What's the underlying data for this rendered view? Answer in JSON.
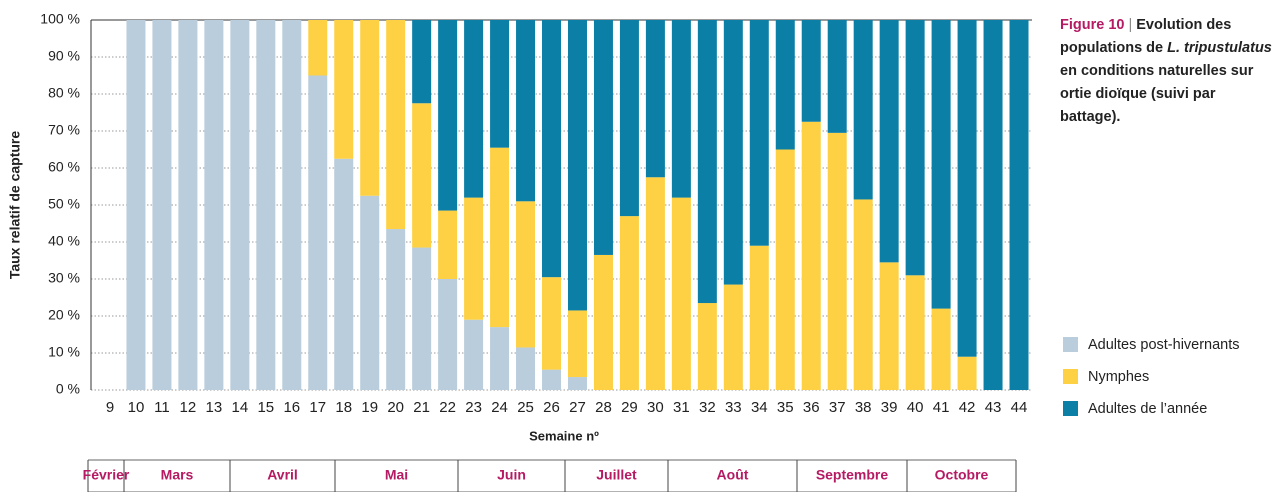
{
  "chart_data": {
    "type": "stacked_bar",
    "ylabel": "Taux relatif de capture",
    "xlabel": "Semaine nº",
    "categories": [
      "9",
      "10",
      "11",
      "12",
      "13",
      "14",
      "15",
      "16",
      "17",
      "18",
      "19",
      "20",
      "21",
      "22",
      "23",
      "24",
      "25",
      "26",
      "27",
      "28",
      "29",
      "30",
      "31",
      "32",
      "33",
      "34",
      "35",
      "36",
      "37",
      "38",
      "39",
      "40",
      "41",
      "42",
      "43",
      "44"
    ],
    "series": [
      {
        "name": "Adultes post-hivernants",
        "color": "#b9cddc",
        "values": [
          0,
          100,
          100,
          100,
          100,
          100,
          100,
          100,
          85,
          62.5,
          52.5,
          43.5,
          38.5,
          30,
          19,
          17,
          11.5,
          5.5,
          3.5,
          0,
          0,
          0,
          0,
          0,
          0,
          0,
          0,
          0,
          0,
          0,
          0,
          0,
          0,
          0,
          0,
          0
        ]
      },
      {
        "name": "Nymphes",
        "color": "#fdd143",
        "values": [
          0,
          0,
          0,
          0,
          0,
          0,
          0,
          0,
          15,
          37.5,
          47.5,
          56.5,
          39,
          18.5,
          33,
          48.5,
          39.5,
          25,
          18,
          36.5,
          47,
          57.5,
          52,
          23.5,
          28.5,
          39,
          65,
          72.5,
          69.5,
          51.5,
          34.5,
          31,
          22,
          9,
          0,
          0
        ]
      },
      {
        "name": "Adultes de l’année",
        "color": "#0b7fa6",
        "values": [
          0,
          0,
          0,
          0,
          0,
          0,
          0,
          0,
          0,
          0,
          0,
          0,
          22.5,
          51.5,
          48,
          34.5,
          49,
          69.5,
          78.5,
          63.5,
          53,
          42.5,
          48,
          76.5,
          71.5,
          61,
          35,
          27.5,
          30.5,
          48.5,
          65.5,
          69,
          78,
          91,
          100,
          100
        ]
      }
    ],
    "ylim": [
      0,
      100
    ],
    "yticks": [
      {
        "value": 0,
        "label": "0 %"
      },
      {
        "value": 10,
        "label": "10 %"
      },
      {
        "value": 20,
        "label": "20 %"
      },
      {
        "value": 30,
        "label": "30 %"
      },
      {
        "value": 40,
        "label": "40 %"
      },
      {
        "value": 50,
        "label": "50 %"
      },
      {
        "value": 60,
        "label": "60 %"
      },
      {
        "value": 70,
        "label": "70 %"
      },
      {
        "value": 80,
        "label": "80 %"
      },
      {
        "value": 90,
        "label": "90 %"
      },
      {
        "value": 100,
        "label": "100 %"
      }
    ],
    "grid": true,
    "months": [
      "Février",
      "Mars",
      "Avril",
      "Mai",
      "Juin",
      "Juillet",
      "Août",
      "Septembre",
      "Octobre"
    ],
    "figure_label": "Figure 10",
    "separator": "|",
    "caption": [
      "Evolution des populations de ",
      "L. tripustulatus",
      " en conditions naturelles sur ortie dioïque (suivi par battage)."
    ]
  }
}
